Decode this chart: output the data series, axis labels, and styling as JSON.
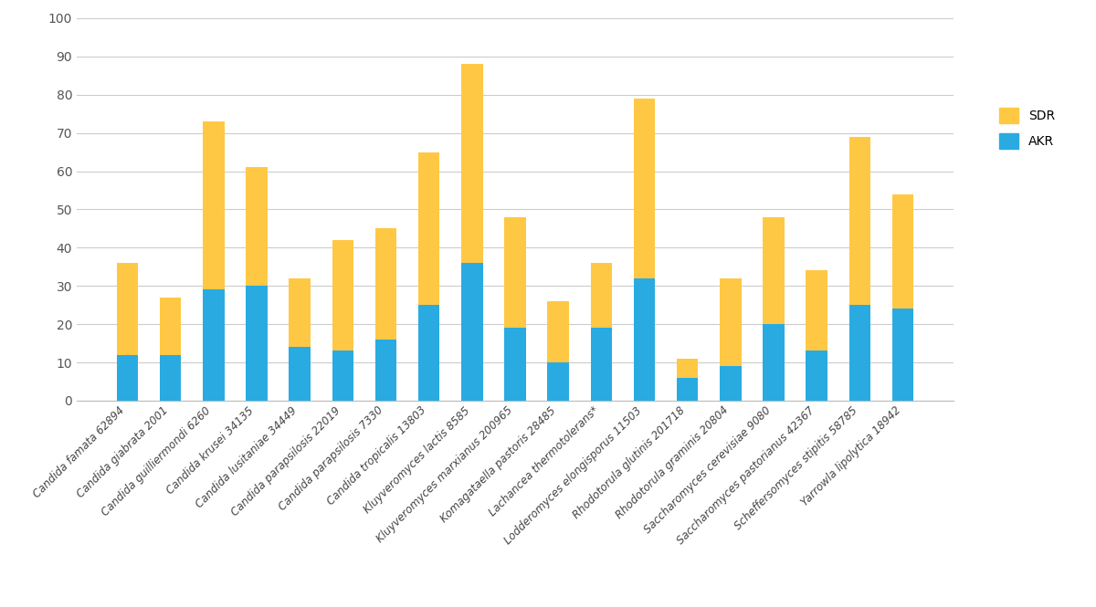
{
  "categories": [
    "Candida famata 62894",
    "Candida giabrata 2001",
    "Candida guilliermondi 6260",
    "Candida krusei 34135",
    "Candida lusitaniae 34449",
    "Candida parapsilosis 22019",
    "Candida parapsilosis 7330",
    "Candida tropicalis 13803",
    "Kluyveromyces lactis 8585",
    "Kluyveromyces marxianus 200965",
    "Komagataella pastoris 28485",
    "Lachancea thermotolerans*",
    "Lodderomyces elongisporus 11503",
    "Rhodotorula glutinis 201718",
    "Rhodotorula graminis 20804",
    "Saccharomyces cerevisiae 9080",
    "Saccharomyces pastorianus 42367",
    "Scheffersomyces stipitis 58785",
    "Yarrowla lipolytica 18942"
  ],
  "akr_values": [
    12,
    12,
    29,
    30,
    14,
    13,
    16,
    25,
    36,
    19,
    10,
    19,
    32,
    6,
    9,
    20,
    13,
    25,
    24
  ],
  "sdr_values": [
    24,
    15,
    44,
    31,
    18,
    29,
    29,
    40,
    52,
    29,
    16,
    17,
    47,
    5,
    23,
    28,
    21,
    44,
    30
  ],
  "akr_color": "#29ABE2",
  "sdr_color": "#FFC844",
  "background_color": "#FFFFFF",
  "ylim": [
    0,
    100
  ],
  "yticks": [
    0,
    10,
    20,
    30,
    40,
    50,
    60,
    70,
    80,
    90,
    100
  ],
  "legend_labels": [
    "SDR",
    "AKR"
  ],
  "bar_width": 0.5,
  "grid_color": "#CCCCCC",
  "tick_label_fontsize": 8.5,
  "ytick_fontsize": 10,
  "legend_fontsize": 10
}
